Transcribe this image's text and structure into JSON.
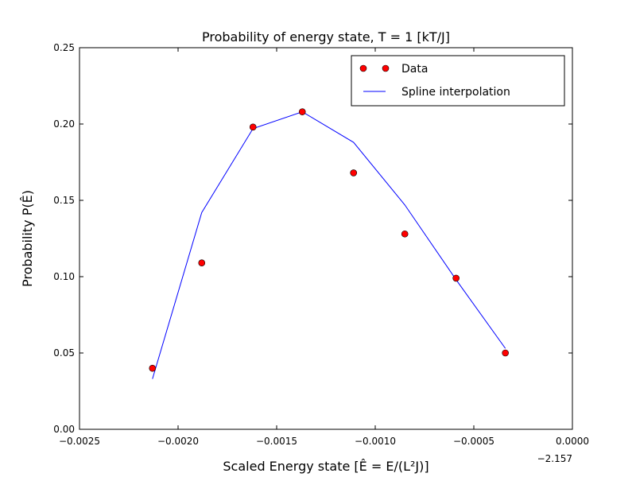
{
  "chart_data": {
    "type": "line",
    "title": "Probability of energy state, T = 1 [kT/J]",
    "xlabel": "Scaled Energy state [Ê = E/(L²J)]",
    "ylabel": "Probability  P(Ê)",
    "x_offset_label": "−2.157",
    "xlim": [
      -0.0025,
      0.0
    ],
    "ylim": [
      0.0,
      0.25
    ],
    "xticks": [
      -0.0025,
      -0.002,
      -0.0015,
      -0.001,
      -0.0005,
      0.0
    ],
    "xtick_labels": [
      "−0.0025",
      "−0.0020",
      "−0.0015",
      "−0.0010",
      "−0.0005",
      "0.0000"
    ],
    "yticks": [
      0.0,
      0.05,
      0.1,
      0.15,
      0.2,
      0.25
    ],
    "ytick_labels": [
      "0.00",
      "0.05",
      "0.10",
      "0.15",
      "0.20",
      "0.25"
    ],
    "grid": false,
    "legend_position": "top-right",
    "series": [
      {
        "name": "Data",
        "style": "markers",
        "color": "#ff0000",
        "x": [
          -0.00213,
          -0.00188,
          -0.00162,
          -0.00137,
          -0.00111,
          -0.00085,
          -0.00059,
          -0.00034
        ],
        "y": [
          0.04,
          0.109,
          0.198,
          0.208,
          0.168,
          0.128,
          0.099,
          0.05
        ]
      },
      {
        "name": "Spline interpolation",
        "style": "line",
        "color": "#0000ff",
        "x": [
          -0.00213,
          -0.00188,
          -0.00162,
          -0.00137,
          -0.00111,
          -0.00085,
          -0.00059,
          -0.00034
        ],
        "y": [
          0.033,
          0.142,
          0.197,
          0.208,
          0.188,
          0.147,
          0.098,
          0.053
        ]
      }
    ]
  }
}
